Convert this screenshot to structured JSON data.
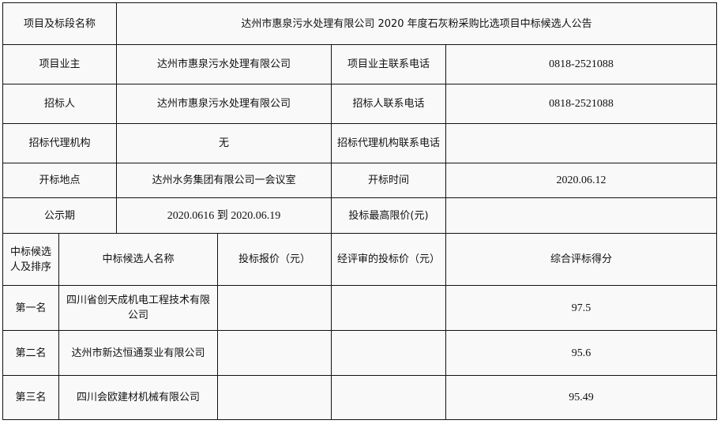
{
  "project": {
    "label": "项目及标段名称",
    "value": "达州市惠泉污水处理有限公司 2020 年度石灰粉采购比选项目中标候选人公告"
  },
  "owner": {
    "label": "项目业主",
    "value": "达州市惠泉污水处理有限公司",
    "phone_label": "项目业主联系电话",
    "phone": "0818-2521088"
  },
  "tenderer": {
    "label": "招标人",
    "value": "达州市惠泉污水处理有限公司",
    "phone_label": "招标人联系电话",
    "phone": "0818-2521088"
  },
  "agency": {
    "label": "招标代理机构",
    "value": "无",
    "phone_label": "招标代理机构联系电话",
    "phone": ""
  },
  "opening": {
    "label": "开标地点",
    "value": "达州水务集团有限公司一会议室",
    "time_label": "开标时间",
    "time": "2020.06.12"
  },
  "publicity": {
    "label": "公示期",
    "value": "2020.0616 到 2020.06.19",
    "max_price_label": "投标最高限价(元)",
    "max_price": ""
  },
  "candidates": {
    "headers": [
      "中标候选人及排序",
      "中标候选人名称",
      "投标报价（元）",
      "经评审的投标价（元）",
      "综合评标得分"
    ],
    "rows": [
      {
        "rank": "第一名",
        "name": "四川省创天成机电工程技术有限公司",
        "bid": "",
        "reviewed": "",
        "score": "97.5"
      },
      {
        "rank": "第二名",
        "name": "达州市新达恒通泵业有限公司",
        "bid": "",
        "reviewed": "",
        "score": "95.6"
      },
      {
        "rank": "第三名",
        "name": "四川会欧建材机械有限公司",
        "bid": "",
        "reviewed": "",
        "score": "95.49"
      }
    ]
  }
}
